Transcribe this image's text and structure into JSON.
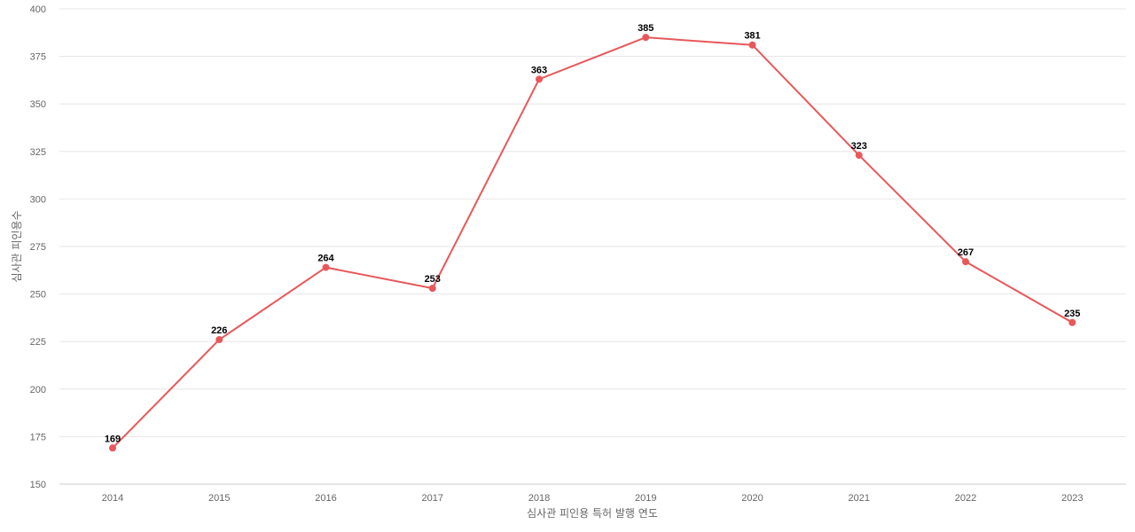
{
  "chart_data": {
    "type": "line",
    "title": "",
    "xlabel": "심사관 피인용 특허 발행 연도",
    "ylabel": "심사관 피인용수",
    "categories": [
      "2014",
      "2015",
      "2016",
      "2017",
      "2018",
      "2019",
      "2020",
      "2021",
      "2022",
      "2023"
    ],
    "series": [
      {
        "values": [
          169,
          226,
          264,
          253,
          363,
          385,
          381,
          323,
          267,
          235
        ],
        "color": "#e8585a"
      }
    ],
    "ylim": [
      150,
      400
    ],
    "yticks": [
      150,
      175,
      200,
      225,
      250,
      275,
      300,
      325,
      350,
      375,
      400
    ],
    "grid": true,
    "data_labels": true,
    "legend": "none"
  }
}
